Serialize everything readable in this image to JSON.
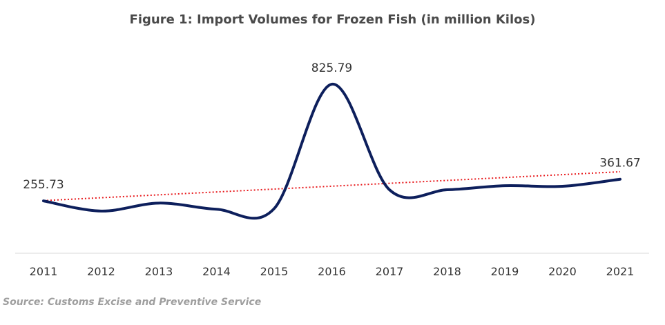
{
  "chart_data": {
    "type": "line",
    "title": "Figure 1: Import Volumes for Frozen Fish (in million Kilos)",
    "xlabel": "",
    "ylabel": "",
    "categories": [
      "2011",
      "2012",
      "2013",
      "2014",
      "2015",
      "2016",
      "2017",
      "2018",
      "2019",
      "2020",
      "2021"
    ],
    "series": [
      {
        "values": [
          255.73,
          206,
          245,
          215,
          218,
          825.79,
          310,
          310,
          330,
          327,
          361.67
        ],
        "color": "#0d1f5c"
      }
    ],
    "data_labels": [
      {
        "category": "2011",
        "text": "255.73"
      },
      {
        "category": "2016",
        "text": "825.79"
      },
      {
        "category": "2021",
        "text": "361.67"
      }
    ],
    "trendline": {
      "type": "linear",
      "color": "#e8191c",
      "style": "dotted"
    },
    "ylim": [
      0,
      900
    ],
    "grid": false,
    "legend": "none"
  },
  "source": "Source: Customs Excise and Preventive Service"
}
